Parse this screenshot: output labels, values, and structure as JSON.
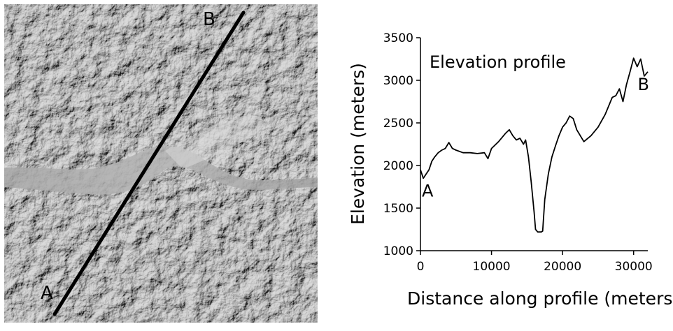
{
  "map": {
    "point_a_label": "A",
    "point_b_label": "B",
    "profile_line_color": "#000000"
  },
  "chart_data": {
    "type": "line",
    "title": "Elevation profile",
    "xlabel": "Distance along profile (meters)",
    "ylabel": "Elevation (meters)",
    "xlim": [
      0,
      32000
    ],
    "ylim": [
      1000,
      3500
    ],
    "xticks": [
      0,
      10000,
      20000,
      30000
    ],
    "yticks": [
      1000,
      1500,
      2000,
      2500,
      3000,
      3500
    ],
    "grid": false,
    "annotations": [
      {
        "text": "A",
        "x": 200,
        "y": 1800
      },
      {
        "text": "B",
        "x": 31600,
        "y": 3050
      }
    ],
    "series": [
      {
        "color": "#000000",
        "x": [
          0,
          400,
          800,
          1200,
          1600,
          2000,
          2500,
          3000,
          3500,
          4000,
          4500,
          5000,
          6000,
          7000,
          8000,
          9000,
          9500,
          10000,
          11000,
          12000,
          12500,
          13000,
          13500,
          14000,
          14500,
          14800,
          15200,
          15600,
          16000,
          16200,
          16500,
          17000,
          17200,
          17500,
          18000,
          18500,
          19000,
          19500,
          20000,
          20500,
          21000,
          21500,
          22000,
          22500,
          23000,
          24000,
          25000,
          26000,
          27000,
          27500,
          28000,
          28500,
          29000,
          29500,
          30000,
          30500,
          31000,
          31500,
          32000
        ],
        "values": [
          1950,
          1850,
          1900,
          1950,
          2050,
          2100,
          2150,
          2180,
          2200,
          2270,
          2200,
          2180,
          2150,
          2150,
          2140,
          2150,
          2080,
          2200,
          2280,
          2380,
          2420,
          2350,
          2300,
          2320,
          2250,
          2300,
          2100,
          1800,
          1450,
          1250,
          1220,
          1220,
          1230,
          1600,
          1900,
          2100,
          2230,
          2350,
          2450,
          2500,
          2580,
          2550,
          2420,
          2350,
          2280,
          2350,
          2450,
          2600,
          2800,
          2820,
          2900,
          2750,
          2950,
          3100,
          3260,
          3160,
          3250,
          3050,
          3100
        ]
      }
    ]
  }
}
